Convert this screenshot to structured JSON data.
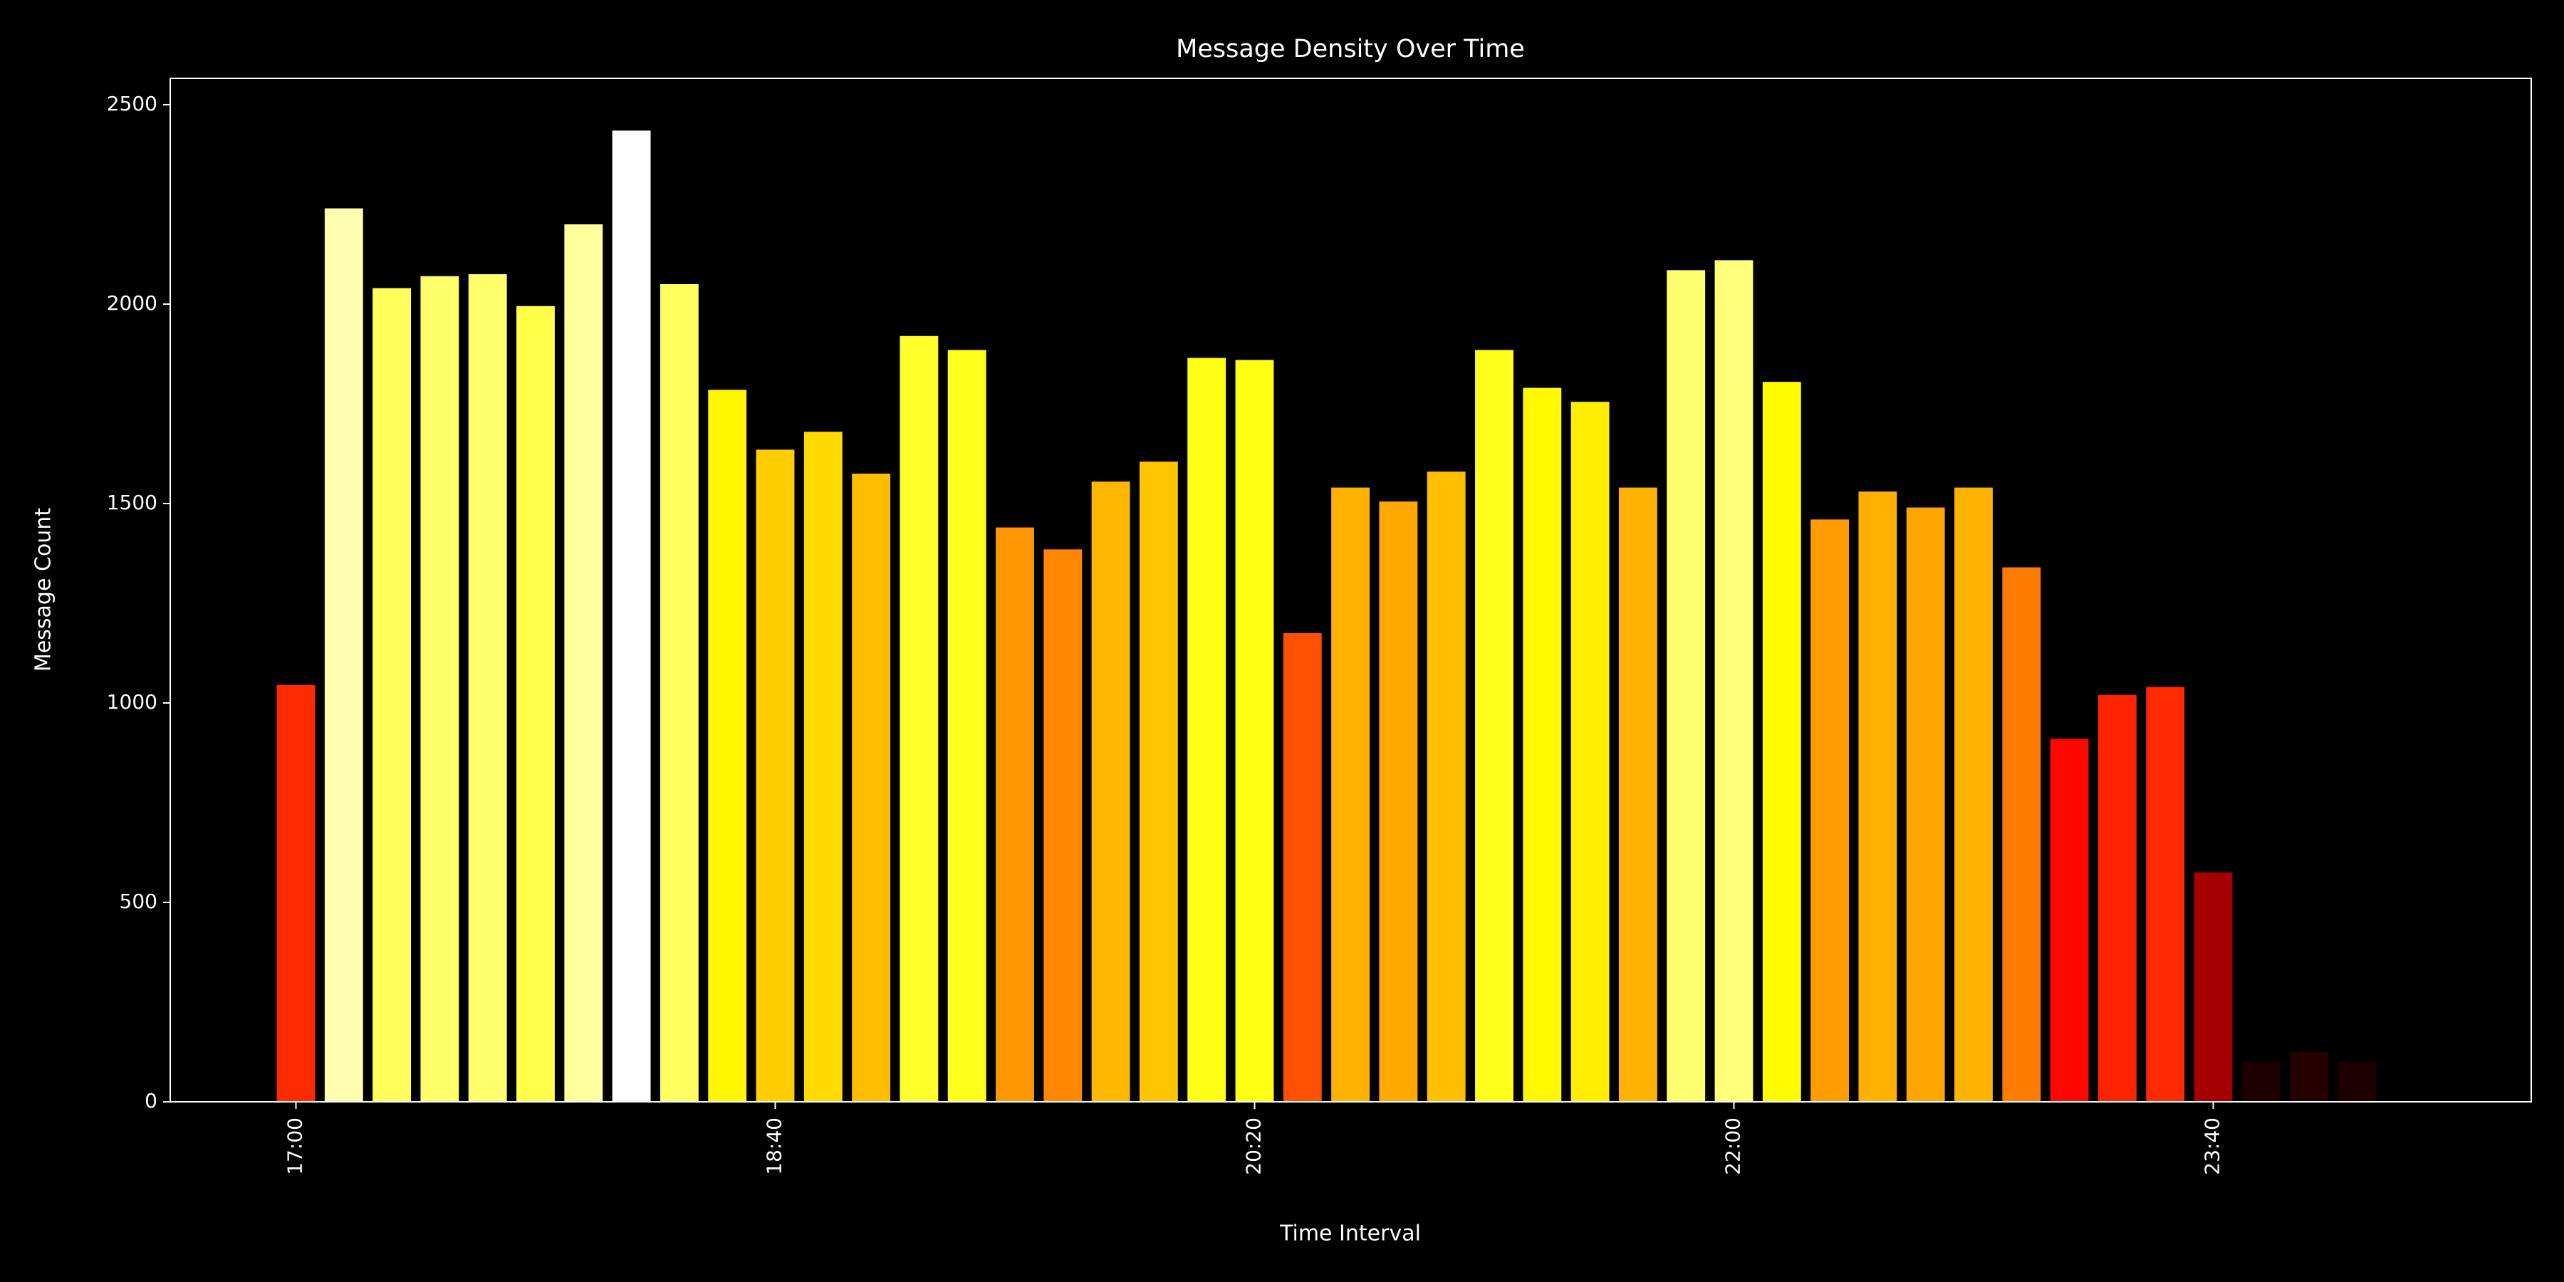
{
  "chart_data": {
    "type": "bar",
    "title": "Message Density Over Time",
    "x_label": "Time Interval",
    "y_label": "Message Count",
    "categories": [
      "17:00",
      null,
      null,
      null,
      null,
      null,
      null,
      null,
      null,
      null,
      "18:40",
      null,
      null,
      null,
      null,
      null,
      null,
      null,
      null,
      null,
      "20:20",
      null,
      null,
      null,
      null,
      null,
      null,
      null,
      null,
      null,
      "22:00",
      null,
      null,
      null,
      null,
      null,
      null,
      null,
      null,
      null,
      "23:40",
      null,
      null,
      null,
      null
    ],
    "values": [
      1045,
      2240,
      2040,
      2070,
      2075,
      1995,
      2200,
      2435,
      2050,
      1785,
      1635,
      1680,
      1575,
      1920,
      1885,
      1440,
      1385,
      1555,
      1605,
      1865,
      1860,
      1175,
      1540,
      1505,
      1580,
      1885,
      1790,
      1755,
      1540,
      2085,
      2110,
      1805,
      1460,
      1530,
      1490,
      1540,
      1340,
      910,
      1020,
      1040,
      575,
      100,
      125,
      100,
      5
    ],
    "colormap": "hot",
    "ylim": [
      0,
      2566
    ],
    "yticks": [
      0,
      500,
      1000,
      1500,
      2000,
      2500
    ]
  }
}
